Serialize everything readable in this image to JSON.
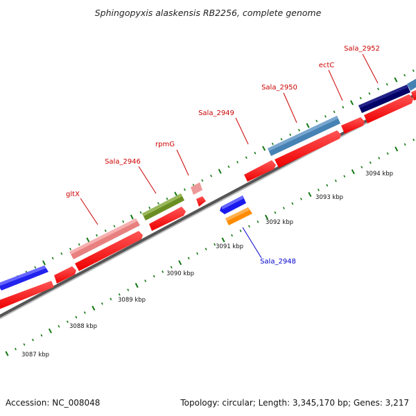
{
  "title": "Sphingopyxis alaskensis RB2256, complete genome",
  "footer": {
    "accession": "Accession: NC_008048",
    "summary": "Topology: circular; Length: 3,345,170 bp; Genes: 3,217"
  },
  "kbp_labels": [
    "3087 kbp",
    "3088 kbp",
    "3089 kbp",
    "3090 kbp",
    "3091 kbp",
    "3092 kbp",
    "3093 kbp",
    "3094 kbp"
  ],
  "gene_labels": [
    {
      "text": "gltX",
      "color": "#cc0000"
    },
    {
      "text": "Sala_2946",
      "color": "#cc0000"
    },
    {
      "text": "rpmG",
      "color": "#cc0000"
    },
    {
      "text": "Sala_2949",
      "color": "#cc0000"
    },
    {
      "text": "Sala_2950",
      "color": "#cc0000"
    },
    {
      "text": "ectC",
      "color": "#cc0000"
    },
    {
      "text": "Sala_2952",
      "color": "#cc0000"
    },
    {
      "text": "Sala_2948",
      "color": "#0000cc"
    }
  ],
  "colors": {
    "cds": "#ee1111",
    "backbone": "#888888",
    "tick": "#117711"
  }
}
